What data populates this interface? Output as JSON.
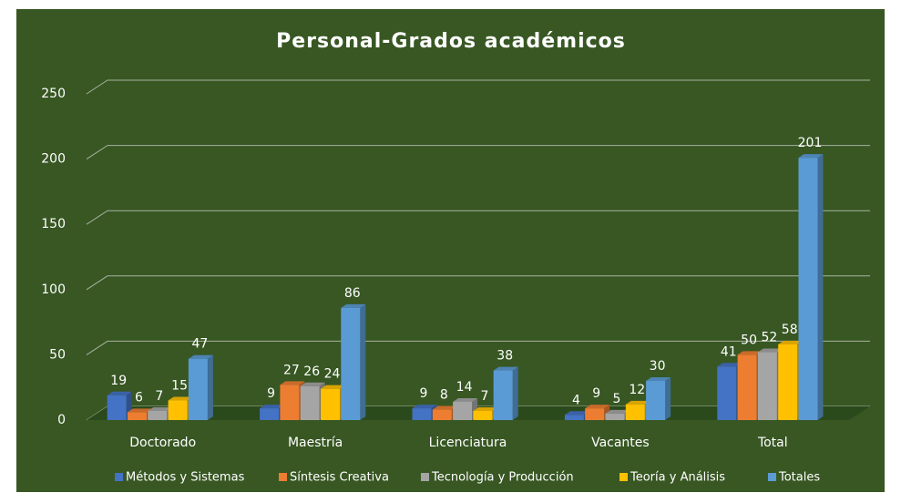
{
  "chart_data": {
    "type": "bar",
    "title": "Personal-Grados académicos",
    "categories": [
      "Doctorado",
      "Maestría",
      "Licenciatura",
      "Vacantes",
      "Total"
    ],
    "series": [
      {
        "name": "Métodos y Sistemas",
        "color": "#4472c4",
        "values": [
          19,
          9,
          9,
          4,
          41
        ]
      },
      {
        "name": "Síntesis Creativa",
        "color": "#ed7d31",
        "values": [
          6,
          27,
          8,
          9,
          50
        ]
      },
      {
        "name": "Tecnología y Producción",
        "color": "#a5a5a5",
        "values": [
          7,
          26,
          14,
          5,
          52
        ]
      },
      {
        "name": "Teoría y Análisis",
        "color": "#ffc000",
        "values": [
          15,
          24,
          7,
          12,
          58
        ]
      },
      {
        "name": "Totales",
        "color": "#5b9bd5",
        "values": [
          47,
          86,
          38,
          30,
          201
        ]
      }
    ],
    "ylim": [
      0,
      250
    ],
    "yticks": [
      0,
      50,
      100,
      150,
      200,
      250
    ],
    "grid": true,
    "legend": "bottom"
  }
}
